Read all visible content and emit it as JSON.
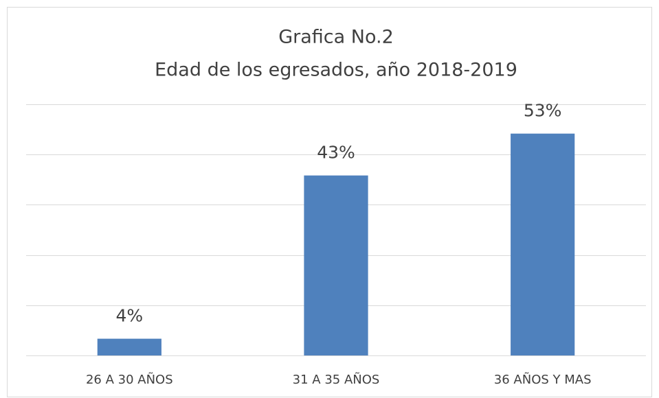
{
  "chart_data": {
    "type": "bar",
    "title": "Grafica No.2",
    "subtitle": "Edad de los egresados, año 2018-2019",
    "categories": [
      "26 A 30 AÑOS",
      "31 A 35 AÑOS",
      "36 AÑOS Y MAS"
    ],
    "values": [
      4,
      43,
      53
    ],
    "value_labels": [
      "4%",
      "43%",
      "53%"
    ],
    "color": "#4f81bd",
    "ylim": [
      0,
      60
    ],
    "yticks": [
      0,
      12,
      24,
      36,
      48,
      60
    ],
    "grid": true
  }
}
